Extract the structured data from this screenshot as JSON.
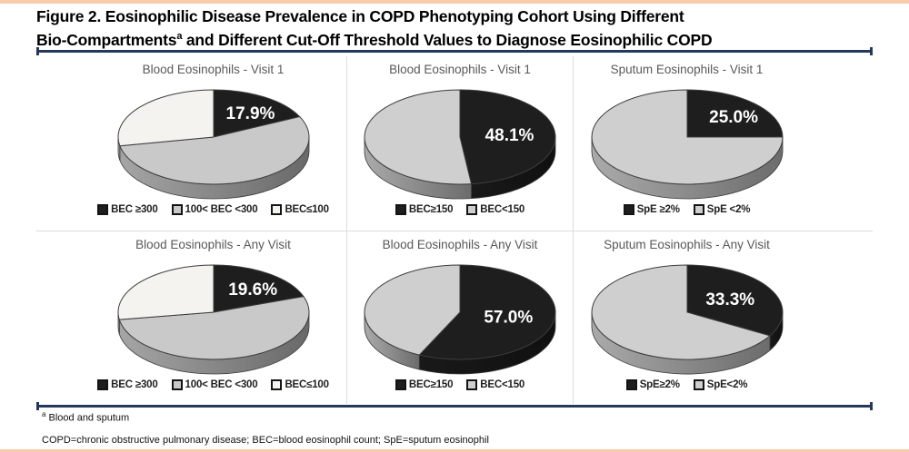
{
  "page": {
    "title_line1": "Figure 2. Eosinophilic Disease Prevalence in COPD Phenotyping Cohort Using Different",
    "title_line2_pre": "Bio-Compartments",
    "title_sup": "a",
    "title_line2_post": " and Different Cut-Off Threshold Values to Diagnose Eosinophilic COPD",
    "footnote_sup": "a",
    "footnote_text": " Blood and sputum",
    "abbreviations": "COPD=chronic obstructive pulmonary disease; BEC=blood eosinophil count; SpE=sputum eosinophil",
    "accent_border_color": "#f8cbad",
    "rule_color": "#24385c",
    "divider_color": "#dcdcdc"
  },
  "chart_data": [
    {
      "type": "pie",
      "style": "3d",
      "title": "Blood Eosinophils - Visit 1",
      "labels": [
        "BEC ≥300",
        "100< BEC <300",
        "BEC≤100"
      ],
      "values_pct": [
        17.9,
        54.1,
        28.0
      ],
      "colors": [
        "#1e1e1e",
        "#c9c9c9",
        "#f4f3f0"
      ],
      "labeled_slice_index": 0,
      "labeled_slice_text": "17.9%"
    },
    {
      "type": "pie",
      "style": "3d",
      "title": "Blood Eosinophils - Visit 1",
      "labels": [
        "BEC≥150",
        "BEC<150"
      ],
      "values_pct": [
        48.1,
        51.9
      ],
      "colors": [
        "#1e1e1e",
        "#cfcfcf"
      ],
      "labeled_slice_index": 0,
      "labeled_slice_text": "48.1%"
    },
    {
      "type": "pie",
      "style": "3d",
      "title": "Sputum Eosinophils - Visit 1",
      "labels": [
        "SpE ≥2%",
        "SpE <2%"
      ],
      "values_pct": [
        25.0,
        75.0
      ],
      "colors": [
        "#1e1e1e",
        "#cfcfcf"
      ],
      "labeled_slice_index": 0,
      "labeled_slice_text": "25.0%"
    },
    {
      "type": "pie",
      "style": "3d",
      "title": "Blood Eosinophils - Any Visit",
      "labels": [
        "BEC ≥300",
        "100< BEC <300",
        "BEC≤100"
      ],
      "values_pct": [
        19.6,
        52.9,
        27.5
      ],
      "colors": [
        "#1e1e1e",
        "#c9c9c9",
        "#f4f3f0"
      ],
      "labeled_slice_index": 0,
      "labeled_slice_text": "19.6%"
    },
    {
      "type": "pie",
      "style": "3d",
      "title": "Blood Eosinophils - Any Visit",
      "labels": [
        "BEC≥150",
        "BEC<150"
      ],
      "values_pct": [
        57.0,
        43.0
      ],
      "colors": [
        "#1e1e1e",
        "#cfcfcf"
      ],
      "labeled_slice_index": 0,
      "labeled_slice_text": "57.0%"
    },
    {
      "type": "pie",
      "style": "3d",
      "title": "Sputum Eosinophils - Any Visit",
      "labels": [
        "SpE≥2%",
        "SpE<2%"
      ],
      "values_pct": [
        33.3,
        66.7
      ],
      "colors": [
        "#1e1e1e",
        "#cfcfcf"
      ],
      "labeled_slice_index": 0,
      "labeled_slice_text": "33.3%"
    }
  ]
}
